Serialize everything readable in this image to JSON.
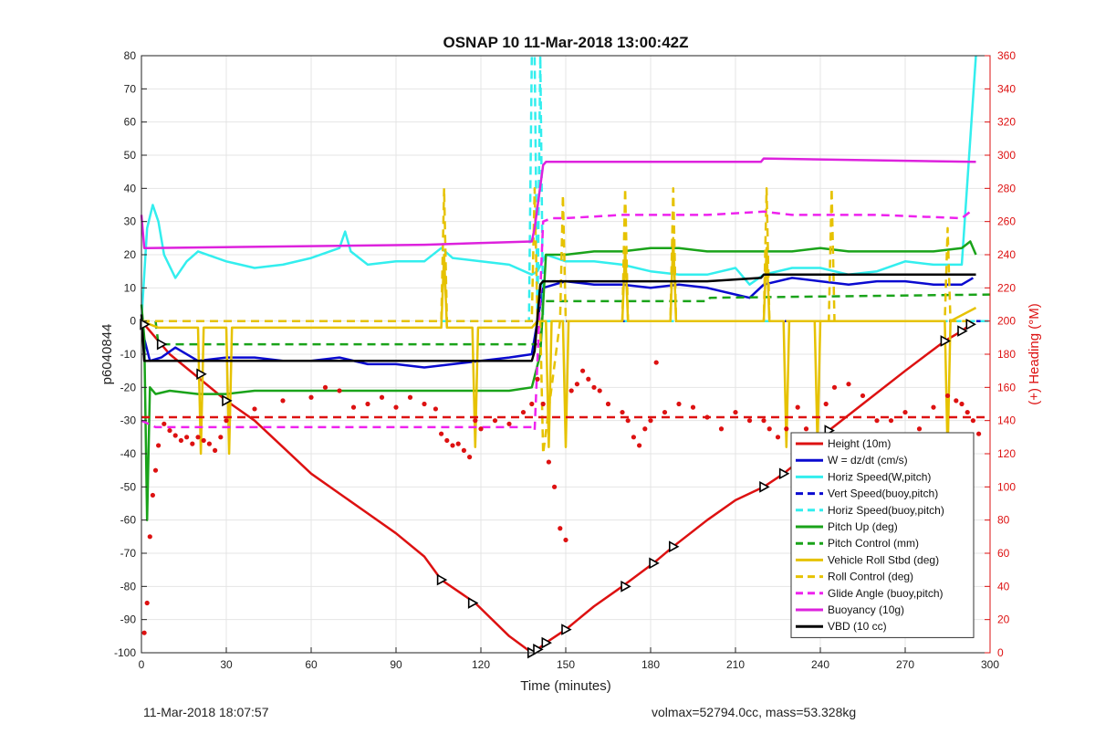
{
  "footer": {
    "timestamp": "11-Mar-2018 18:07:57",
    "stats": "volmax=52794.0cc, mass=53.328kg"
  },
  "chart_data": {
    "type": "line",
    "title": "OSNAP 10 11-Mar-2018 13:00:42Z",
    "xlabel": "Time (minutes)",
    "ylabel": "p6040844",
    "y2label": "(+) Heading (°M)",
    "xlim": [
      0,
      300
    ],
    "ylim": [
      -100,
      80
    ],
    "y2lim": [
      0,
      360
    ],
    "xticks": [
      "0",
      "30",
      "60",
      "90",
      "120",
      "150",
      "180",
      "210",
      "240",
      "270",
      "300"
    ],
    "yticks": [
      "-100",
      "-90",
      "-80",
      "-70",
      "-60",
      "-50",
      "-40",
      "-30",
      "-20",
      "-10",
      "0",
      "10",
      "20",
      "30",
      "40",
      "50",
      "60",
      "70",
      "80"
    ],
    "y2ticks": [
      "0",
      "20",
      "40",
      "60",
      "80",
      "100",
      "120",
      "140",
      "160",
      "180",
      "200",
      "220",
      "240",
      "260",
      "280",
      "300",
      "320",
      "340",
      "360"
    ],
    "grid": true,
    "legend_position": "bottom-right",
    "colors": {
      "height": "#dd1111",
      "w": "#0a0ad0",
      "horiz_speed": "#33eeee",
      "pitch_up": "#1aa31a",
      "roll": "#e6c200",
      "glide": "#ee22ee",
      "buoyancy": "#dd22dd",
      "vbd": "#000000",
      "axis_right": "#dd1111"
    },
    "series": [
      {
        "name": "Height (10m)",
        "color": "#dd1111",
        "dash": false,
        "x": [
          0,
          10,
          20,
          30,
          40,
          50,
          60,
          70,
          80,
          90,
          100,
          106,
          118,
          130,
          138,
          140,
          143,
          150,
          160,
          170,
          181,
          188,
          200,
          210,
          220,
          227,
          240,
          243,
          255,
          270,
          284,
          290,
          293
        ],
        "y": [
          0,
          -10,
          -17,
          -24,
          -30,
          -38,
          -46,
          -52,
          -58,
          -64,
          -71,
          -78,
          -85,
          -95,
          -100,
          -99,
          -97,
          -93,
          -86,
          -80,
          -73,
          -68,
          -60,
          -54,
          -50,
          -46,
          -37,
          -33,
          -25,
          -15,
          -6,
          -3,
          -1
        ]
      },
      {
        "name": "W = dz/dt (cm/s)",
        "color": "#0a0ad0",
        "dash": false,
        "x": [
          0,
          3,
          7,
          12,
          20,
          30,
          40,
          50,
          60,
          70,
          80,
          90,
          100,
          110,
          120,
          130,
          138,
          142,
          150,
          160,
          170,
          180,
          190,
          200,
          210,
          215,
          220,
          230,
          240,
          250,
          260,
          270,
          280,
          290,
          294
        ],
        "y": [
          -2,
          -12,
          -11,
          -8,
          -12,
          -11,
          -11,
          -12,
          -12,
          -11,
          -13,
          -13,
          -14,
          -13,
          -12,
          -11,
          -10,
          10,
          12,
          11,
          11,
          10,
          11,
          10,
          8,
          7,
          11,
          13,
          12,
          11,
          12,
          12,
          11,
          11,
          13
        ]
      },
      {
        "name": "Horiz Speed(W,pitch)",
        "color": "#33eeee",
        "dash": false,
        "x": [
          0,
          2,
          4,
          6,
          8,
          12,
          16,
          20,
          30,
          40,
          50,
          60,
          70,
          72,
          74,
          80,
          90,
          100,
          106,
          110,
          120,
          130,
          138,
          140,
          143,
          150,
          160,
          170,
          180,
          190,
          200,
          210,
          215,
          220,
          230,
          240,
          250,
          260,
          270,
          280,
          290,
          295
        ],
        "y": [
          0,
          28,
          35,
          30,
          20,
          13,
          18,
          21,
          18,
          16,
          17,
          19,
          22,
          27,
          21,
          17,
          18,
          18,
          22,
          19,
          18,
          17,
          14,
          15,
          20,
          18,
          18,
          17,
          15,
          14,
          14,
          16,
          11,
          14,
          16,
          16,
          14,
          15,
          18,
          17,
          17,
          80
        ]
      },
      {
        "name": "Vert Speed(buoy,pitch)",
        "color": "#0a0ad0",
        "dash": true,
        "x": [
          0,
          300
        ],
        "y": [
          0,
          0
        ]
      },
      {
        "name": "Horiz Speed(buoy,pitch)",
        "color": "#33eeee",
        "dash": true,
        "x": [
          0,
          137,
          138,
          139,
          140,
          141,
          142,
          145,
          300
        ],
        "y": [
          0,
          0,
          80,
          80,
          0,
          80,
          0,
          0,
          0
        ]
      },
      {
        "name": "Pitch Up (deg)",
        "color": "#1aa31a",
        "dash": false,
        "x": [
          0,
          1,
          2,
          3,
          5,
          10,
          20,
          30,
          40,
          50,
          60,
          70,
          80,
          90,
          100,
          110,
          120,
          130,
          138,
          141,
          143,
          150,
          160,
          170,
          180,
          190,
          200,
          210,
          220,
          230,
          240,
          250,
          260,
          270,
          280,
          290,
          293,
          295
        ],
        "y": [
          5,
          -5,
          -60,
          -20,
          -22,
          -21,
          -22,
          -22,
          -21,
          -21,
          -21,
          -21,
          -21,
          -21,
          -21,
          -21,
          -21,
          -21,
          -20,
          -10,
          20,
          20,
          21,
          21,
          22,
          22,
          21,
          21,
          21,
          21,
          22,
          21,
          21,
          21,
          21,
          22,
          24,
          20
        ]
      },
      {
        "name": "Pitch Control (mm)",
        "color": "#1aa31a",
        "dash": true,
        "x": [
          0,
          5,
          6,
          30,
          31,
          138,
          141,
          142,
          200,
          201,
          300
        ],
        "y": [
          0,
          0,
          -7,
          -7,
          -7,
          -7,
          -7,
          6,
          6,
          7,
          8
        ]
      },
      {
        "name": "Vehicle Roll Stbd (deg)",
        "color": "#e6c200",
        "dash": false,
        "x": [
          0,
          6,
          7,
          20,
          21,
          22,
          30,
          31,
          32,
          106,
          107,
          108,
          117,
          118,
          119,
          138,
          140,
          143,
          144,
          145,
          149,
          150,
          151,
          170,
          171,
          172,
          187,
          188,
          189,
          220,
          221,
          222,
          227,
          228,
          229,
          238,
          239,
          240,
          284,
          285,
          286,
          295
        ],
        "y": [
          0,
          -2,
          -2,
          -2,
          -40,
          -2,
          -2,
          -40,
          -2,
          -2,
          20,
          -2,
          -2,
          -38,
          -2,
          -2,
          0,
          0,
          -38,
          0,
          0,
          -38,
          0,
          0,
          22,
          0,
          0,
          25,
          0,
          0,
          22,
          0,
          0,
          -38,
          0,
          0,
          -38,
          0,
          0,
          -40,
          0,
          4
        ]
      },
      {
        "name": "Roll Control (deg)",
        "color": "#e6c200",
        "dash": true,
        "x": [
          0,
          106,
          107,
          108,
          138,
          139,
          140,
          141,
          142,
          148,
          149,
          150,
          170,
          171,
          172,
          187,
          188,
          189,
          220,
          221,
          222,
          243,
          244,
          245,
          284,
          285,
          286,
          295
        ],
        "y": [
          0,
          0,
          40,
          0,
          0,
          40,
          0,
          0,
          -40,
          0,
          38,
          0,
          0,
          40,
          0,
          0,
          40,
          0,
          0,
          40,
          0,
          0,
          40,
          0,
          0,
          28,
          0,
          0
        ]
      },
      {
        "name": "Glide Angle (buoy,pitch)",
        "color": "#ee22ee",
        "dash": true,
        "x": [
          0,
          5,
          10,
          30,
          60,
          90,
          120,
          138,
          139,
          142,
          145,
          150,
          170,
          180,
          200,
          220,
          230,
          240,
          260,
          290,
          293
        ],
        "y": [
          -30,
          -32,
          -32,
          -32,
          -32,
          -32,
          -32,
          -32,
          -33,
          30,
          31,
          31,
          32,
          32,
          32,
          33,
          32,
          32,
          32,
          31,
          33
        ]
      },
      {
        "name": "Buoyancy (10g)",
        "color": "#dd22dd",
        "dash": false,
        "x": [
          0,
          1,
          2,
          100,
          138,
          139,
          142,
          143,
          200,
          219,
          220,
          294,
          295
        ],
        "y": [
          32,
          22,
          22,
          23,
          24,
          28,
          47,
          48,
          48,
          48,
          49,
          48,
          48
        ]
      },
      {
        "name": "VBD (10 cc)",
        "color": "#000000",
        "dash": false,
        "x": [
          0,
          1,
          2,
          30,
          100,
          138,
          139,
          141,
          142,
          145,
          200,
          219,
          220,
          294,
          295
        ],
        "y": [
          2,
          -12,
          -12,
          -12,
          -12,
          -12,
          -9,
          11,
          12,
          12,
          12,
          13,
          14,
          14,
          14
        ]
      },
      {
        "name": "Heading",
        "type": "scatter",
        "axis": "right",
        "color": "#dd1111",
        "x": [
          1,
          2,
          3,
          4,
          5,
          6,
          8,
          10,
          12,
          14,
          16,
          18,
          20,
          22,
          24,
          26,
          28,
          30,
          40,
          50,
          60,
          65,
          70,
          75,
          80,
          85,
          90,
          95,
          100,
          104,
          106,
          108,
          110,
          112,
          114,
          116,
          118,
          120,
          125,
          130,
          135,
          138,
          140,
          142,
          144,
          146,
          148,
          150,
          152,
          154,
          156,
          158,
          160,
          162,
          165,
          170,
          172,
          174,
          176,
          178,
          180,
          182,
          185,
          190,
          195,
          200,
          205,
          210,
          215,
          220,
          222,
          225,
          228,
          232,
          235,
          238,
          240,
          242,
          245,
          250,
          255,
          260,
          265,
          270,
          275,
          280,
          285,
          288,
          290,
          292,
          294,
          296
        ],
        "y": [
          12,
          30,
          70,
          95,
          110,
          125,
          138,
          134,
          131,
          128,
          130,
          126,
          130,
          128,
          126,
          122,
          130,
          140,
          147,
          152,
          154,
          160,
          158,
          148,
          150,
          154,
          148,
          154,
          150,
          147,
          132,
          128,
          125,
          126,
          122,
          118,
          140,
          135,
          140,
          138,
          145,
          150,
          165,
          150,
          115,
          100,
          75,
          68,
          158,
          162,
          170,
          165,
          160,
          158,
          150,
          145,
          140,
          130,
          125,
          135,
          140,
          175,
          145,
          150,
          148,
          142,
          135,
          145,
          140,
          140,
          135,
          130,
          135,
          148,
          135,
          125,
          120,
          150,
          160,
          162,
          155,
          140,
          140,
          145,
          135,
          148,
          155,
          152,
          150,
          145,
          140,
          132
        ]
      },
      {
        "name": "Heading Target",
        "type": "line",
        "axis": "right",
        "color": "#dd1111",
        "dash": true,
        "x": [
          0,
          300
        ],
        "y": [
          142,
          142
        ]
      }
    ],
    "markers": [
      {
        "x": 1,
        "y": -1
      },
      {
        "x": 7,
        "y": -7
      },
      {
        "x": 21,
        "y": -16
      },
      {
        "x": 30,
        "y": -24
      },
      {
        "x": 106,
        "y": -78
      },
      {
        "x": 117,
        "y": -85
      },
      {
        "x": 138,
        "y": -100
      },
      {
        "x": 140,
        "y": -99
      },
      {
        "x": 143,
        "y": -97
      },
      {
        "x": 150,
        "y": -93
      },
      {
        "x": 171,
        "y": -80
      },
      {
        "x": 181,
        "y": -73
      },
      {
        "x": 188,
        "y": -68
      },
      {
        "x": 220,
        "y": -50
      },
      {
        "x": 227,
        "y": -46
      },
      {
        "x": 238,
        "y": -37
      },
      {
        "x": 243,
        "y": -33
      },
      {
        "x": 284,
        "y": -6
      },
      {
        "x": 290,
        "y": -3
      },
      {
        "x": 293,
        "y": -1
      }
    ],
    "legend": [
      {
        "label": "Height (10m)",
        "color": "#dd1111",
        "dash": false
      },
      {
        "label": "W = dz/dt (cm/s)",
        "color": "#0a0ad0",
        "dash": false
      },
      {
        "label": "Horiz Speed(W,pitch)",
        "color": "#33eeee",
        "dash": false
      },
      {
        "label": "Vert Speed(buoy,pitch)",
        "color": "#0a0ad0",
        "dash": true
      },
      {
        "label": "Horiz Speed(buoy,pitch)",
        "color": "#33eeee",
        "dash": true
      },
      {
        "label": "Pitch Up (deg)",
        "color": "#1aa31a",
        "dash": false
      },
      {
        "label": "Pitch Control (mm)",
        "color": "#1aa31a",
        "dash": true
      },
      {
        "label": "Vehicle Roll Stbd (deg)",
        "color": "#e6c200",
        "dash": false
      },
      {
        "label": "Roll Control (deg)",
        "color": "#e6c200",
        "dash": true
      },
      {
        "label": "Glide Angle (buoy,pitch)",
        "color": "#ee22ee",
        "dash": true
      },
      {
        "label": "Buoyancy (10g)",
        "color": "#dd22dd",
        "dash": false
      },
      {
        "label": "VBD (10 cc)",
        "color": "#000000",
        "dash": false
      }
    ]
  }
}
